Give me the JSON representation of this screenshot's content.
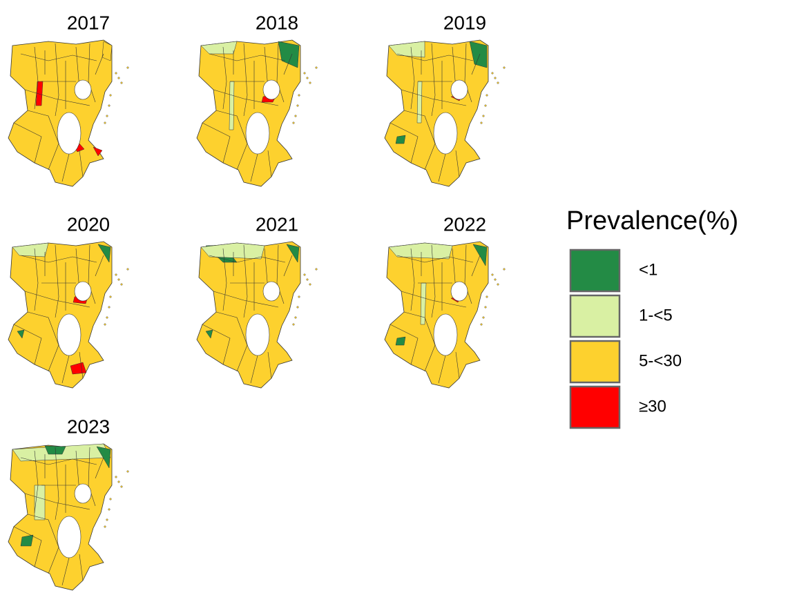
{
  "panels": [
    {
      "title": "2017"
    },
    {
      "title": "2018"
    },
    {
      "title": "2019"
    },
    {
      "title": "2020"
    },
    {
      "title": "2021"
    },
    {
      "title": "2022"
    },
    {
      "title": "2023"
    }
  ],
  "legend": {
    "title": "Prevalence(%)",
    "items": [
      {
        "label": "<1",
        "color": "#238b45"
      },
      {
        "label": "1-<5",
        "color": "#d9f0a3"
      },
      {
        "label": "5-<30",
        "color": "#fdd12e"
      },
      {
        "label": "≥30",
        "color": "#ff0000"
      }
    ]
  }
}
